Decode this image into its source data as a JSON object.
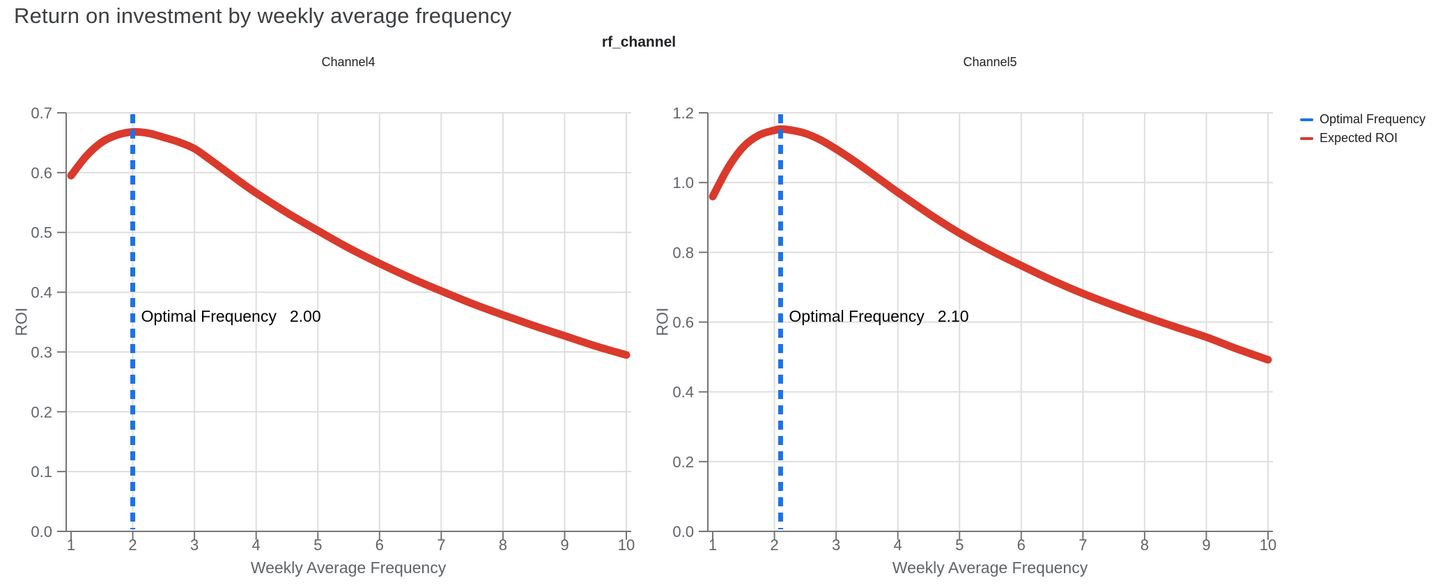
{
  "header": {
    "title": "Return on investment by weekly average frequency",
    "facet_field": "rf_channel"
  },
  "legend": {
    "position": "top-right",
    "items": [
      {
        "label": "Optimal Frequency",
        "color": "#1A73E8"
      },
      {
        "label": "Expected ROI",
        "color": "#D93A2C"
      }
    ]
  },
  "colors": {
    "expected_roi_line": "#D93A2C",
    "optimal_frequency_line": "#1A73E8",
    "grid": "#DEDEDE",
    "axis": "#757575",
    "tick_label": "#5F6368",
    "title_text": "#3C4043"
  },
  "chart_data": [
    {
      "type": "line",
      "title": "Channel4",
      "xlabel": "Weekly Average Frequency",
      "ylabel": "ROI",
      "xlim": [
        1,
        10
      ],
      "ylim": [
        0,
        0.7
      ],
      "grid": true,
      "x_ticks": [
        1,
        2,
        3,
        4,
        5,
        6,
        7,
        8,
        9,
        10
      ],
      "y_ticks": [
        0.0,
        0.1,
        0.2,
        0.3,
        0.4,
        0.5,
        0.6,
        0.7
      ],
      "y_tick_labels": [
        "0.0",
        "0.1",
        "0.2",
        "0.3",
        "0.4",
        "0.5",
        "0.6",
        "0.7"
      ],
      "annotation_label": "Optimal Frequency",
      "annotation_value": "2.00",
      "series": [
        {
          "name": "Expected ROI",
          "kind": "curve",
          "color": "#D93A2C",
          "points": [
            [
              1.0,
              0.595
            ],
            [
              1.25,
              0.628
            ],
            [
              1.5,
              0.651
            ],
            [
              1.75,
              0.663
            ],
            [
              2.0,
              0.668
            ],
            [
              2.25,
              0.666
            ],
            [
              2.5,
              0.659
            ],
            [
              2.75,
              0.651
            ],
            [
              3.0,
              0.64
            ],
            [
              3.25,
              0.622
            ],
            [
              3.5,
              0.603
            ],
            [
              3.75,
              0.584
            ],
            [
              4.0,
              0.566
            ],
            [
              4.5,
              0.533
            ],
            [
              5.0,
              0.503
            ],
            [
              5.5,
              0.474
            ],
            [
              6.0,
              0.448
            ],
            [
              6.5,
              0.424
            ],
            [
              7.0,
              0.402
            ],
            [
              7.5,
              0.381
            ],
            [
              8.0,
              0.362
            ],
            [
              8.5,
              0.344
            ],
            [
              9.0,
              0.327
            ],
            [
              9.5,
              0.31
            ],
            [
              10.0,
              0.295
            ]
          ]
        },
        {
          "name": "Optimal Frequency",
          "kind": "vline-dashed",
          "color": "#1A73E8",
          "x": 2.0
        }
      ]
    },
    {
      "type": "line",
      "title": "Channel5",
      "xlabel": "Weekly Average Frequency",
      "ylabel": "ROI",
      "xlim": [
        1,
        10
      ],
      "ylim": [
        0,
        1.2
      ],
      "grid": true,
      "x_ticks": [
        1,
        2,
        3,
        4,
        5,
        6,
        7,
        8,
        9,
        10
      ],
      "y_ticks": [
        0.0,
        0.2,
        0.4,
        0.6,
        0.8,
        1.0,
        1.2
      ],
      "y_tick_labels": [
        "0.0",
        "0.2",
        "0.4",
        "0.6",
        "0.8",
        "1.0",
        "1.2"
      ],
      "annotation_label": "Optimal Frequency",
      "annotation_value": "2.10",
      "series": [
        {
          "name": "Expected ROI",
          "kind": "curve",
          "color": "#D93A2C",
          "points": [
            [
              1.0,
              0.96
            ],
            [
              1.25,
              1.043
            ],
            [
              1.5,
              1.103
            ],
            [
              1.75,
              1.136
            ],
            [
              2.0,
              1.15
            ],
            [
              2.1,
              1.153
            ],
            [
              2.25,
              1.151
            ],
            [
              2.5,
              1.141
            ],
            [
              2.75,
              1.122
            ],
            [
              3.0,
              1.096
            ],
            [
              3.25,
              1.067
            ],
            [
              3.5,
              1.036
            ],
            [
              3.75,
              1.004
            ],
            [
              4.0,
              0.972
            ],
            [
              4.5,
              0.911
            ],
            [
              5.0,
              0.855
            ],
            [
              5.5,
              0.806
            ],
            [
              6.0,
              0.762
            ],
            [
              6.5,
              0.72
            ],
            [
              7.0,
              0.682
            ],
            [
              7.5,
              0.648
            ],
            [
              8.0,
              0.616
            ],
            [
              8.5,
              0.586
            ],
            [
              9.0,
              0.557
            ],
            [
              9.5,
              0.523
            ],
            [
              10.0,
              0.492
            ]
          ]
        },
        {
          "name": "Optimal Frequency",
          "kind": "vline-dashed",
          "color": "#1A73E8",
          "x": 2.1
        }
      ]
    }
  ]
}
